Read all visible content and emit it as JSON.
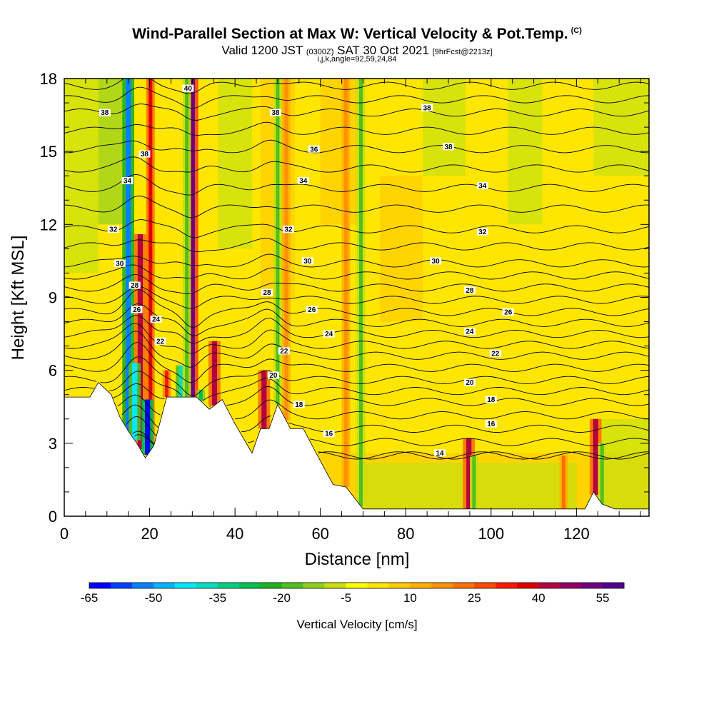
{
  "title": {
    "main": "Wind-Parallel Section at Max W: Vertical Velocity & Pot.Temp.",
    "copyright": "(C)",
    "valid_prefix": "Valid 1200 JST",
    "valid_utc": "(0300Z)",
    "valid_date": "SAT 30 Oct 2021",
    "forecast": "[9hrFcst@2213z]",
    "indices": "i,j,k,angle=92,59,24,84"
  },
  "colorbar": {
    "label": "Vertical Velocity [cm/s]",
    "ticks": [
      "-65",
      "-50",
      "-35",
      "-20",
      "-5",
      "10",
      "25",
      "40",
      "55"
    ],
    "colors": [
      "#0000ff",
      "#0040ff",
      "#0080ff",
      "#00b4ff",
      "#00e8ff",
      "#00e0c0",
      "#00d080",
      "#00c050",
      "#20b020",
      "#50c020",
      "#90d020",
      "#c8e010",
      "#ffff00",
      "#ffe600",
      "#ffcc00",
      "#ffb000",
      "#ff9200",
      "#ff7000",
      "#ff4800",
      "#ff1800",
      "#e00000",
      "#b40040",
      "#900060",
      "#700080",
      "#500090"
    ]
  },
  "chart_data": {
    "type": "heatmap",
    "xlabel": "Distance [nm]",
    "ylabel": "Height [Kft MSL]",
    "xlim": [
      0,
      137
    ],
    "ylim": [
      0,
      18
    ],
    "xticks": [
      0,
      20,
      40,
      60,
      80,
      100,
      120
    ],
    "yticks": [
      0,
      3,
      6,
      9,
      12,
      15,
      18
    ],
    "shaded_field": "Vertical Velocity [cm/s]",
    "contour_field": "Potential temperature",
    "terrain": [
      [
        0,
        4.9
      ],
      [
        6,
        4.9
      ],
      [
        8,
        5.5
      ],
      [
        11,
        5
      ],
      [
        13,
        4.1
      ],
      [
        15,
        3.5
      ],
      [
        17,
        3
      ],
      [
        19,
        2.4
      ],
      [
        21,
        2.9
      ],
      [
        24,
        4.9
      ],
      [
        31,
        4.9
      ],
      [
        34,
        4.4
      ],
      [
        37,
        4.8
      ],
      [
        40,
        3.8
      ],
      [
        44,
        2.6
      ],
      [
        46,
        3.6
      ],
      [
        48,
        3.6
      ],
      [
        50,
        4.6
      ],
      [
        53,
        3.6
      ],
      [
        56,
        3.6
      ],
      [
        59,
        2.6
      ],
      [
        63,
        1.3
      ],
      [
        66,
        1.2
      ],
      [
        70,
        0.3
      ],
      [
        75,
        0.3
      ],
      [
        80,
        0.3
      ],
      [
        90,
        0.3
      ],
      [
        120,
        0.3
      ],
      [
        122,
        0.3
      ],
      [
        124,
        1
      ],
      [
        126,
        0.5
      ],
      [
        129,
        0.3
      ],
      [
        137,
        0.3
      ]
    ],
    "updrafts": [
      {
        "x": 15.3,
        "w": 45,
        "ztop": 6.2
      },
      {
        "x": 17.8,
        "w": 40,
        "ztop": 11.6
      },
      {
        "x": 20.2,
        "w": 35,
        "ztop": 18
      },
      {
        "x": 24,
        "w": 28,
        "ztop": 6
      },
      {
        "x": 30,
        "w": 48,
        "ztop": 18
      },
      {
        "x": 35.2,
        "w": 42,
        "ztop": 7.2
      },
      {
        "x": 46.8,
        "w": 40,
        "ztop": 6
      },
      {
        "x": 52,
        "w": 15,
        "ztop": 18
      },
      {
        "x": 66,
        "w": 15,
        "ztop": 18
      },
      {
        "x": 94.8,
        "w": 38,
        "ztop": 3.2
      },
      {
        "x": 117,
        "w": 22,
        "ztop": 2.5
      },
      {
        "x": 124.5,
        "w": 38,
        "ztop": 4
      }
    ],
    "downdrafts": [
      {
        "x": 15,
        "w": -55,
        "ztop": 18
      },
      {
        "x": 16.5,
        "w": -45,
        "ztop": 6.3
      },
      {
        "x": 19.5,
        "w": -65,
        "ztop": 4.8
      },
      {
        "x": 27.5,
        "w": -40,
        "ztop": 6.2
      },
      {
        "x": 28.7,
        "w": -20,
        "ztop": 18
      },
      {
        "x": 32,
        "w": -30,
        "ztop": 5.2
      },
      {
        "x": 50,
        "w": -20,
        "ztop": 18
      },
      {
        "x": 69.5,
        "w": -20,
        "ztop": 18
      },
      {
        "x": 96,
        "w": -20,
        "ztop": 2.5
      },
      {
        "x": 126,
        "w": -22,
        "ztop": 3
      }
    ],
    "contour_levels": [
      14,
      16,
      18,
      20,
      22,
      24,
      26,
      28,
      30,
      32,
      34,
      36,
      38,
      40
    ],
    "contour_labels": [
      {
        "text": "40",
        "x": 29,
        "z": 17.6
      },
      {
        "text": "38",
        "x": 9.5,
        "z": 16.6
      },
      {
        "text": "38",
        "x": 18.8,
        "z": 14.9
      },
      {
        "text": "38",
        "x": 49.5,
        "z": 16.6
      },
      {
        "text": "38",
        "x": 85,
        "z": 16.8
      },
      {
        "text": "38",
        "x": 90,
        "z": 15.2
      },
      {
        "text": "36",
        "x": 58.5,
        "z": 15.1
      },
      {
        "text": "34",
        "x": 14.8,
        "z": 13.8
      },
      {
        "text": "34",
        "x": 56,
        "z": 13.8
      },
      {
        "text": "34",
        "x": 98,
        "z": 13.6
      },
      {
        "text": "32",
        "x": 11.5,
        "z": 11.8
      },
      {
        "text": "32",
        "x": 52.5,
        "z": 11.8
      },
      {
        "text": "32",
        "x": 98,
        "z": 11.7
      },
      {
        "text": "30",
        "x": 13,
        "z": 10.4
      },
      {
        "text": "30",
        "x": 57,
        "z": 10.5
      },
      {
        "text": "30",
        "x": 87,
        "z": 10.5
      },
      {
        "text": "28",
        "x": 16.5,
        "z": 9.5
      },
      {
        "text": "28",
        "x": 47.5,
        "z": 9.2
      },
      {
        "text": "28",
        "x": 95,
        "z": 9.3
      },
      {
        "text": "26",
        "x": 17,
        "z": 8.5
      },
      {
        "text": "26",
        "x": 58,
        "z": 8.5
      },
      {
        "text": "26",
        "x": 104,
        "z": 8.4
      },
      {
        "text": "24",
        "x": 21.5,
        "z": 8.1
      },
      {
        "text": "24",
        "x": 62,
        "z": 7.5
      },
      {
        "text": "24",
        "x": 95,
        "z": 7.6
      },
      {
        "text": "22",
        "x": 22.5,
        "z": 7.2
      },
      {
        "text": "22",
        "x": 51.5,
        "z": 6.8
      },
      {
        "text": "22",
        "x": 101,
        "z": 6.7
      },
      {
        "text": "20",
        "x": 49,
        "z": 5.8
      },
      {
        "text": "20",
        "x": 95,
        "z": 5.5
      },
      {
        "text": "18",
        "x": 55,
        "z": 4.6
      },
      {
        "text": "18",
        "x": 100,
        "z": 4.8
      },
      {
        "text": "16",
        "x": 62,
        "z": 3.4
      },
      {
        "text": "16",
        "x": 100,
        "z": 3.8
      },
      {
        "text": "14",
        "x": 88,
        "z": 2.6
      }
    ]
  }
}
